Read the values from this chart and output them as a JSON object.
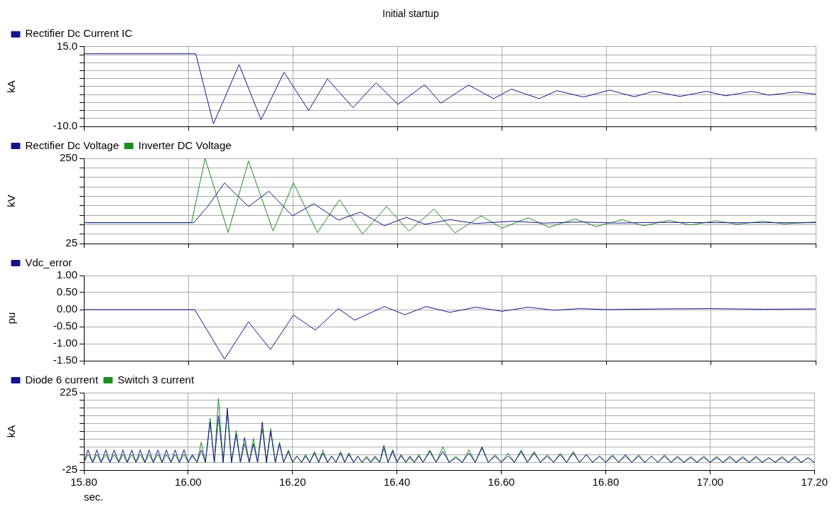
{
  "chart_data": [
    {
      "type": "line",
      "title": "Initial startup",
      "ylabel": "kA",
      "legend": "top left",
      "grid": true,
      "marker": "none",
      "line_style": "solid",
      "tick_labels": "y",
      "xlim": [
        15.8,
        17.2
      ],
      "xticks": [
        {
          "value": 15.8,
          "label": null
        },
        {
          "value": 16.0,
          "label": null
        },
        {
          "value": 16.2,
          "label": null
        },
        {
          "value": 16.4,
          "label": null
        },
        {
          "value": 16.6,
          "label": null
        },
        {
          "value": 16.8,
          "label": null
        },
        {
          "value": 17.0,
          "label": null
        },
        {
          "value": 17.2,
          "label": null
        }
      ],
      "ylim": [
        -10,
        15
      ],
      "yticks": [
        {
          "value": 15,
          "label": "15.0"
        },
        {
          "value": 12.5,
          "label": null
        },
        {
          "value": 10,
          "label": null
        },
        {
          "value": 7.5,
          "label": null
        },
        {
          "value": 5,
          "label": null
        },
        {
          "value": 2.5,
          "label": null
        },
        {
          "value": 0,
          "label": null
        },
        {
          "value": -2.5,
          "label": null
        },
        {
          "value": -5,
          "label": null
        },
        {
          "value": -7.5,
          "label": null
        },
        {
          "value": -10,
          "label": "-10.0"
        }
      ],
      "x": [
        15.8,
        16.0,
        16.014,
        16.048,
        16.097,
        16.139,
        16.183,
        16.23,
        16.266,
        16.315,
        16.359,
        16.401,
        16.452,
        16.483,
        16.536,
        16.584,
        16.618,
        16.671,
        16.705,
        16.756,
        16.806,
        16.853,
        16.89,
        16.94,
        16.991,
        17.028,
        17.078,
        17.11,
        17.161,
        17.2
      ],
      "series": [
        {
          "name": "Rectifier Dc Current IC",
          "color": "#14148c",
          "values": [
            12.8,
            12.8,
            12.8,
            -9.2,
            9.4,
            -7.9,
            7.0,
            -5.0,
            4.9,
            -4.1,
            3.7,
            -3.1,
            3.1,
            -2.7,
            3.0,
            -1.3,
            1.7,
            -1.3,
            1.2,
            -0.8,
            1.4,
            -0.7,
            1.0,
            -0.6,
            1.0,
            -0.4,
            1.0,
            -0.2,
            0.8,
            0.1
          ]
        }
      ]
    },
    {
      "type": "line",
      "ylabel": "kV",
      "legend": "top left",
      "grid": true,
      "marker": "none",
      "line_style": "solid",
      "tick_labels": "y",
      "xlim": [
        15.8,
        17.2
      ],
      "xticks": [
        {
          "value": 15.8,
          "label": null
        },
        {
          "value": 16.0,
          "label": null
        },
        {
          "value": 16.2,
          "label": null
        },
        {
          "value": 16.4,
          "label": null
        },
        {
          "value": 16.6,
          "label": null
        },
        {
          "value": 16.8,
          "label": null
        },
        {
          "value": 17.0,
          "label": null
        },
        {
          "value": 17.2,
          "label": null
        }
      ],
      "ylim": [
        25,
        250
      ],
      "yticks": [
        250,
        {
          "value": 225,
          "label": null
        },
        {
          "value": 200,
          "label": null
        },
        {
          "value": 175,
          "label": null
        },
        {
          "value": 150,
          "label": null
        },
        {
          "value": 125,
          "label": null
        },
        {
          "value": 100,
          "label": null
        },
        {
          "value": 75,
          "label": null
        },
        {
          "value": 50,
          "label": null
        },
        25
      ],
      "series": [
        {
          "name": "Rectifier Dc Voltage",
          "color": "#14148c",
          "x": [
            15.8,
            16.01,
            16.037,
            16.069,
            16.115,
            16.154,
            16.199,
            16.24,
            16.287,
            16.329,
            16.375,
            16.417,
            16.453,
            16.5,
            16.55,
            16.62,
            16.68,
            16.75,
            16.82,
            16.9,
            17.0,
            17.2
          ],
          "values": [
            80,
            80,
            123,
            185,
            123,
            163,
            98,
            130,
            87,
            108,
            72,
            94,
            76,
            88,
            78,
            84,
            79,
            82,
            79,
            81,
            80,
            80
          ]
        },
        {
          "name": "Inverter DC Voltage",
          "color": "#1e8c1e",
          "x": [
            15.8,
            16.006,
            16.032,
            16.076,
            16.115,
            16.162,
            16.201,
            16.247,
            16.289,
            16.333,
            16.379,
            16.422,
            16.47,
            16.51,
            16.56,
            16.6,
            16.65,
            16.69,
            16.74,
            16.78,
            16.83,
            16.87,
            16.92,
            16.96,
            17.01,
            17.05,
            17.1,
            17.14,
            17.2
          ],
          "values": [
            80,
            80,
            250,
            54,
            243,
            58,
            185,
            54,
            141,
            50,
            123,
            58,
            116,
            53,
            98,
            66,
            93,
            68,
            90,
            70,
            88,
            72,
            86,
            74,
            85,
            76,
            84,
            77,
            82
          ]
        }
      ]
    },
    {
      "type": "line",
      "ylabel": "pu",
      "legend": "top left",
      "grid": true,
      "marker": "none",
      "line_style": "solid",
      "tick_labels": "y",
      "xlim": [
        15.8,
        17.2
      ],
      "xticks": [
        {
          "value": 15.8,
          "label": null
        },
        {
          "value": 16.0,
          "label": null
        },
        {
          "value": 16.2,
          "label": null
        },
        {
          "value": 16.4,
          "label": null
        },
        {
          "value": 16.6,
          "label": null
        },
        {
          "value": 16.8,
          "label": null
        },
        {
          "value": 17.0,
          "label": null
        },
        {
          "value": 17.2,
          "label": null
        }
      ],
      "ylim": [
        -1.5,
        1.0
      ],
      "yticks": [
        {
          "value": 1.0,
          "label": "1.00"
        },
        {
          "value": 0.5,
          "label": "0.50"
        },
        {
          "value": 0,
          "label": "0.00"
        },
        {
          "value": -0.5,
          "label": "-0.50"
        },
        {
          "value": -1.0,
          "label": "-1.00"
        },
        {
          "value": -1.5,
          "label": "-1.50"
        }
      ],
      "x": [
        15.8,
        16.012,
        16.069,
        16.115,
        16.157,
        16.201,
        16.243,
        16.287,
        16.318,
        16.375,
        16.414,
        16.455,
        16.5,
        16.55,
        16.6,
        16.65,
        16.7,
        16.75,
        16.8,
        16.9,
        17.0,
        17.1,
        17.2
      ],
      "series": [
        {
          "name": "Vdc_error",
          "color": "#14148c",
          "values": [
            0.0,
            0.0,
            -1.45,
            -0.36,
            -1.17,
            -0.16,
            -0.6,
            0.03,
            -0.31,
            0.09,
            -0.15,
            0.09,
            -0.08,
            0.07,
            -0.05,
            0.07,
            -0.02,
            0.03,
            0.0,
            0.02,
            0.03,
            0.01,
            0.02
          ]
        }
      ]
    },
    {
      "type": "line",
      "ylabel": "kA",
      "xlabel": "sec.",
      "legend": "top left",
      "grid": true,
      "marker": "none",
      "line_style": "solid",
      "xlim": [
        15.8,
        17.2
      ],
      "xticks": [
        {
          "value": 15.8,
          "label": "15.80"
        },
        {
          "value": 16.0,
          "label": "16.00"
        },
        {
          "value": 16.2,
          "label": "16.20"
        },
        {
          "value": 16.4,
          "label": "16.40"
        },
        {
          "value": 16.6,
          "label": "16.60"
        },
        {
          "value": 16.8,
          "label": "16.80"
        },
        {
          "value": 17.0,
          "label": "17.00"
        },
        {
          "value": 17.2,
          "label": "17.20"
        }
      ],
      "ylim": [
        -25,
        225
      ],
      "yticks": [
        225,
        {
          "value": 200,
          "label": null
        },
        {
          "value": 175,
          "label": null
        },
        {
          "value": 150,
          "label": null
        },
        {
          "value": 125,
          "label": null
        },
        {
          "value": 100,
          "label": null
        },
        {
          "value": 75,
          "label": null
        },
        {
          "value": 50,
          "label": null
        },
        {
          "value": 25,
          "label": null
        },
        {
          "value": 0,
          "label": null
        },
        -25
      ],
      "x": [
        15.8,
        15.808,
        15.817,
        15.825,
        15.833,
        15.842,
        15.85,
        15.858,
        15.867,
        15.875,
        15.883,
        15.892,
        15.9,
        15.908,
        15.917,
        15.925,
        15.933,
        15.942,
        15.95,
        15.958,
        15.967,
        15.975,
        15.983,
        15.992,
        16.0,
        16.008,
        16.017,
        16.025,
        16.033,
        16.042,
        16.05,
        16.058,
        16.067,
        16.075,
        16.083,
        16.092,
        16.1,
        16.108,
        16.117,
        16.125,
        16.133,
        16.142,
        16.15,
        16.158,
        16.167,
        16.175,
        16.183,
        16.192,
        16.2,
        16.208,
        16.217,
        16.225,
        16.233,
        16.242,
        16.25,
        16.258,
        16.267,
        16.275,
        16.283,
        16.292,
        16.3,
        16.308,
        16.317,
        16.325,
        16.333,
        16.342,
        16.35,
        16.358,
        16.367,
        16.375,
        16.383,
        16.392,
        16.4,
        16.408,
        16.417,
        16.425,
        16.433,
        16.442,
        16.45,
        16.463,
        16.475,
        16.488,
        16.5,
        16.513,
        16.525,
        16.538,
        16.55,
        16.563,
        16.575,
        16.588,
        16.6,
        16.613,
        16.625,
        16.638,
        16.65,
        16.663,
        16.675,
        16.688,
        16.7,
        16.713,
        16.725,
        16.738,
        16.75,
        16.763,
        16.775,
        16.788,
        16.8,
        16.813,
        16.825,
        16.838,
        16.85,
        16.863,
        16.875,
        16.888,
        16.9,
        16.913,
        16.925,
        16.938,
        16.95,
        16.963,
        16.975,
        16.988,
        17.0,
        17.013,
        17.025,
        17.038,
        17.05,
        17.063,
        17.075,
        17.088,
        17.1,
        17.113,
        17.125,
        17.138,
        17.15,
        17.163,
        17.175,
        17.188,
        17.2
      ],
      "series": [
        {
          "name": "Diode 6 current",
          "color": "#14148c",
          "values": [
            0,
            40,
            0,
            40,
            0,
            40,
            0,
            40,
            0,
            40,
            0,
            40,
            0,
            40,
            0,
            40,
            0,
            40,
            0,
            40,
            0,
            40,
            0,
            40,
            0,
            25,
            0,
            40,
            0,
            130,
            0,
            150,
            0,
            175,
            0,
            90,
            0,
            80,
            0,
            60,
            0,
            130,
            0,
            100,
            0,
            60,
            0,
            35,
            0,
            20,
            0,
            20,
            0,
            30,
            0,
            30,
            0,
            20,
            0,
            30,
            0,
            30,
            0,
            20,
            0,
            15,
            0,
            20,
            0,
            55,
            0,
            40,
            0,
            25,
            0,
            20,
            0,
            20,
            0,
            35,
            0,
            35,
            0,
            15,
            0,
            30,
            0,
            50,
            0,
            20,
            0,
            20,
            0,
            35,
            0,
            30,
            0,
            20,
            0,
            25,
            0,
            30,
            0,
            25,
            0,
            20,
            0,
            20,
            0,
            25,
            0,
            20,
            0,
            20,
            0,
            20,
            0,
            20,
            0,
            15,
            0,
            20,
            0,
            15,
            0,
            20,
            0,
            15,
            0,
            20,
            0,
            15,
            0,
            15,
            0,
            20,
            0,
            15,
            0
          ]
        },
        {
          "name": "Switch 3 current",
          "color": "#1e8c1e",
          "values": [
            0,
            25,
            0,
            25,
            0,
            25,
            0,
            25,
            0,
            25,
            0,
            25,
            0,
            25,
            0,
            25,
            0,
            25,
            0,
            25,
            0,
            25,
            0,
            25,
            0,
            20,
            0,
            65,
            0,
            142,
            0,
            207,
            0,
            162,
            0,
            103,
            0,
            60,
            0,
            77,
            0,
            109,
            0,
            109,
            0,
            65,
            0,
            40,
            0,
            20,
            0,
            25,
            0,
            35,
            0,
            40,
            0,
            20,
            0,
            35,
            0,
            25,
            0,
            20,
            0,
            20,
            0,
            15,
            0,
            45,
            0,
            35,
            0,
            20,
            0,
            15,
            0,
            25,
            0,
            40,
            0,
            50,
            0,
            20,
            0,
            40,
            0,
            45,
            0,
            25,
            0,
            30,
            0,
            40,
            0,
            35,
            0,
            25,
            0,
            30,
            0,
            35,
            0,
            25,
            0,
            20,
            0,
            25,
            0,
            20,
            0,
            25,
            0,
            20,
            0,
            25,
            0,
            15,
            0,
            20,
            0,
            15,
            0,
            20,
            0,
            15,
            0,
            20,
            0,
            15,
            0,
            15,
            0,
            20,
            0,
            15,
            0,
            15,
            0
          ]
        }
      ]
    }
  ]
}
